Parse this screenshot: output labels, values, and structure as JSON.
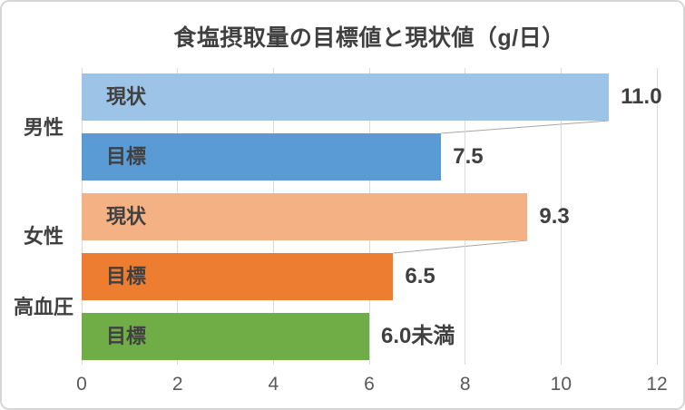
{
  "chart_data": {
    "type": "bar",
    "orientation": "horizontal",
    "title": "食塩摂取量の目標値と現状値（g/日）",
    "xlabel": "",
    "ylabel": "",
    "xlim": [
      0,
      12
    ],
    "x_ticks": [
      0,
      2,
      4,
      6,
      8,
      10,
      12
    ],
    "grid": true,
    "legend_position": "none",
    "groups": [
      {
        "category": "男性",
        "connector": true,
        "bars": [
          {
            "series": "現状",
            "value": 11.0,
            "value_label": "11.0",
            "color": "#9DC3E6"
          },
          {
            "series": "目標",
            "value": 7.5,
            "value_label": "7.5",
            "color": "#5B9BD5"
          }
        ]
      },
      {
        "category": "女性",
        "connector": true,
        "bars": [
          {
            "series": "現状",
            "value": 9.3,
            "value_label": "9.3",
            "color": "#F4B183"
          },
          {
            "series": "目標",
            "value": 6.5,
            "value_label": "6.5",
            "color": "#ED7D31"
          }
        ]
      },
      {
        "category": "高血圧",
        "connector": false,
        "bars": [
          {
            "series": "目標",
            "value": 6.0,
            "value_label": "6.0未満",
            "color": "#70AD47"
          }
        ]
      }
    ],
    "colors": {
      "grid": "#D9D9D9",
      "connector": "#A6A6A6",
      "title_text": "#404040",
      "label_text": "#404040",
      "tick_text": "#595959",
      "border": "#D6D6D6",
      "background": "#FFFFFF"
    }
  }
}
